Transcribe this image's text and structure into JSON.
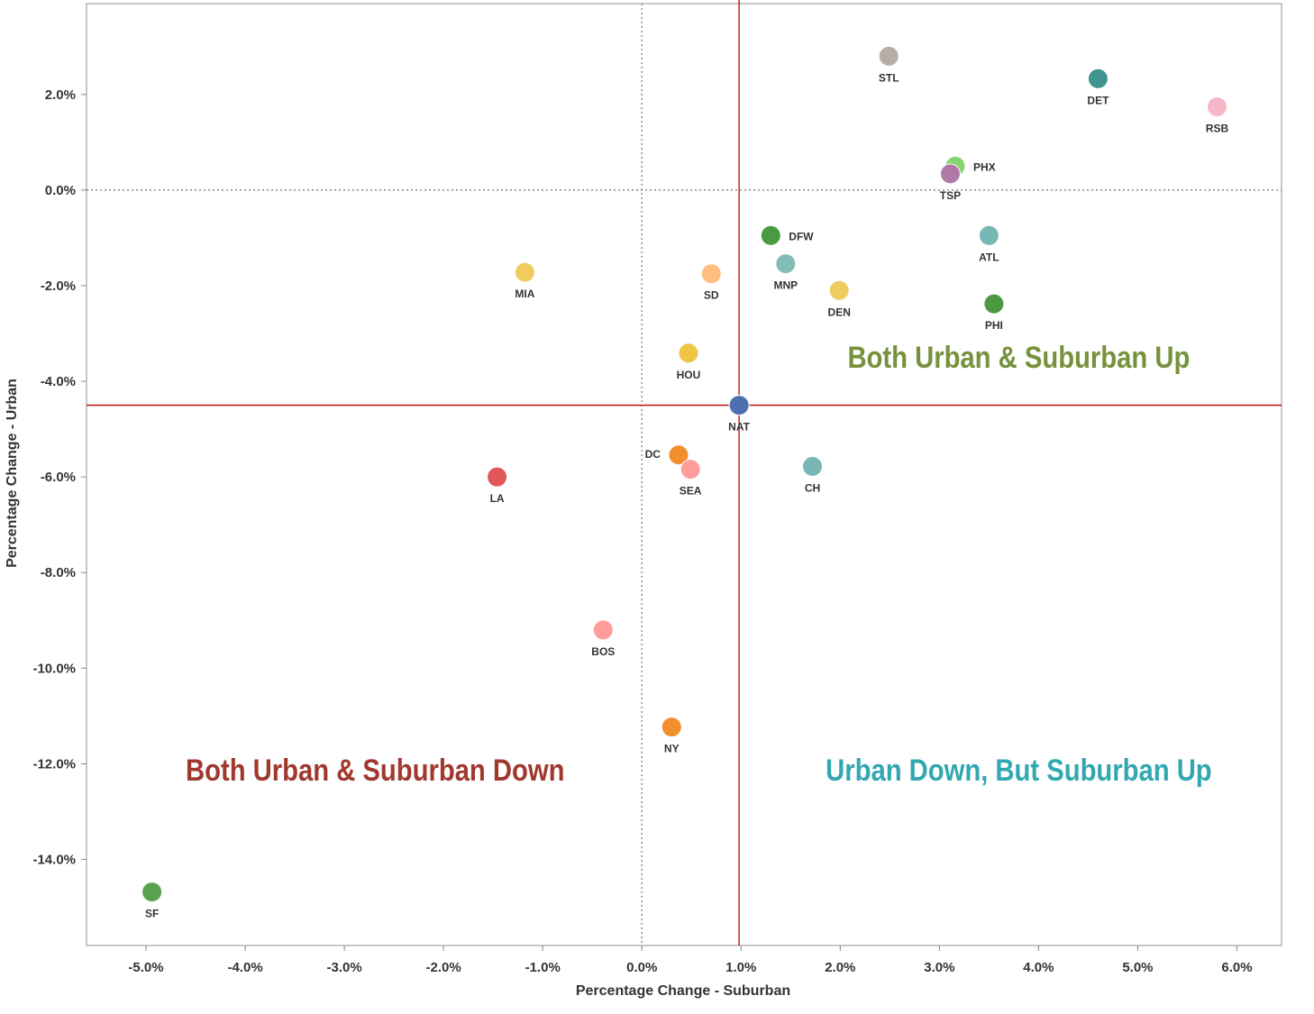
{
  "chart_data": {
    "type": "scatter",
    "title": "",
    "xlabel": "Percentage Change - Suburban",
    "ylabel": "Percentage Change - Urban",
    "xlim": [
      -5.6,
      6.45
    ],
    "ylim": [
      -15.8,
      3.9
    ],
    "x_ticks": [
      -5,
      -4,
      -3,
      -2,
      -1,
      0,
      1,
      2,
      3,
      4,
      5,
      6
    ],
    "x_tick_labels": [
      "-5.0%",
      "-4.0%",
      "-3.0%",
      "-2.0%",
      "-1.0%",
      "0.0%",
      "1.0%",
      "2.0%",
      "3.0%",
      "4.0%",
      "5.0%",
      "6.0%"
    ],
    "y_ticks": [
      2,
      0,
      -2,
      -4,
      -6,
      -8,
      -10,
      -12,
      -14
    ],
    "y_tick_labels": [
      "2.0%",
      "0.0%",
      "-2.0%",
      "-4.0%",
      "-6.0%",
      "-8.0%",
      "-10.0%",
      "-12.0%",
      "-14.0%"
    ],
    "grid": false,
    "zero_lines": {
      "x": 0,
      "y": 0,
      "style": "dotted",
      "color": "#8a8a8a"
    },
    "reference_lines": {
      "x": 0.98,
      "y": -4.5,
      "color": "#c00000"
    },
    "points": [
      {
        "label": "STL",
        "x": 2.49,
        "y": 2.8,
        "color": "#b9aca6",
        "label_pos": "below"
      },
      {
        "label": "DET",
        "x": 4.6,
        "y": 2.33,
        "color": "#3f9490",
        "label_pos": "below"
      },
      {
        "label": "RSB",
        "x": 5.8,
        "y": 1.74,
        "color": "#f6b8c8",
        "label_pos": "below"
      },
      {
        "label": "PHX",
        "x": 3.16,
        "y": 0.5,
        "color": "#86d36f",
        "label_pos": "right"
      },
      {
        "label": "TSP",
        "x": 3.11,
        "y": 0.34,
        "color": "#b07aa8",
        "label_pos": "below"
      },
      {
        "label": "DFW",
        "x": 1.3,
        "y": -0.95,
        "color": "#4a9a3f",
        "label_pos": "right"
      },
      {
        "label": "ATL",
        "x": 3.5,
        "y": -0.95,
        "color": "#79b7b4",
        "label_pos": "below"
      },
      {
        "label": "MNP",
        "x": 1.45,
        "y": -1.54,
        "color": "#86bcb6",
        "label_pos": "below"
      },
      {
        "label": "MIA",
        "x": -1.18,
        "y": -1.72,
        "color": "#f0cb5d",
        "label_pos": "below"
      },
      {
        "label": "SD",
        "x": 0.7,
        "y": -1.75,
        "color": "#ffbe7d",
        "label_pos": "below"
      },
      {
        "label": "DEN",
        "x": 1.99,
        "y": -2.1,
        "color": "#f0cb5d",
        "label_pos": "below"
      },
      {
        "label": "PHI",
        "x": 3.55,
        "y": -2.38,
        "color": "#4a9a3f",
        "label_pos": "below"
      },
      {
        "label": "HOU",
        "x": 0.47,
        "y": -3.41,
        "color": "#eec644",
        "label_pos": "below"
      },
      {
        "label": "NAT",
        "x": 0.98,
        "y": -4.5,
        "color": "#4e6fb0",
        "label_pos": "below"
      },
      {
        "label": "DC",
        "x": 0.37,
        "y": -5.54,
        "color": "#f28e2b",
        "label_pos": "left"
      },
      {
        "label": "SEA",
        "x": 0.49,
        "y": -5.84,
        "color": "#ff9d9a",
        "label_pos": "below"
      },
      {
        "label": "CH",
        "x": 1.72,
        "y": -5.78,
        "color": "#79b7b4",
        "label_pos": "below"
      },
      {
        "label": "LA",
        "x": -1.46,
        "y": -6.0,
        "color": "#e15759",
        "label_pos": "below"
      },
      {
        "label": "BOS",
        "x": -0.39,
        "y": -9.2,
        "color": "#ff9d9a",
        "label_pos": "below"
      },
      {
        "label": "NY",
        "x": 0.3,
        "y": -11.23,
        "color": "#f28e2b",
        "label_pos": "below"
      },
      {
        "label": "SF",
        "x": -4.94,
        "y": -14.68,
        "color": "#59a14f",
        "label_pos": "below"
      }
    ],
    "annotations": [
      {
        "text": "Both Urban & Suburban Up",
        "x": 3.8,
        "y": -3.72,
        "color": "#76923c"
      },
      {
        "text": "Both Urban & Suburban Down",
        "x": -2.69,
        "y": -12.35,
        "color": "#a0382e"
      },
      {
        "text": "Urban Down, But Suburban Up",
        "x": 3.8,
        "y": -12.35,
        "color": "#31a7b2"
      }
    ]
  }
}
